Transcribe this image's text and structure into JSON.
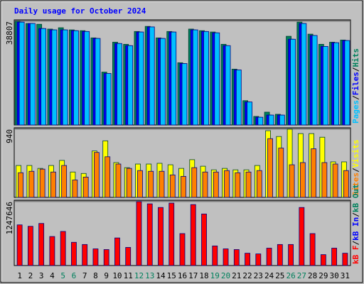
{
  "title": "Daily usage for October 2024",
  "label_separator": "/",
  "chart_data": [
    {
      "type": "bar",
      "categories": [
        "1",
        "2",
        "3",
        "4",
        "5",
        "6",
        "7",
        "8",
        "9",
        "10",
        "11",
        "12",
        "13",
        "14",
        "15",
        "16",
        "17",
        "18",
        "19",
        "20",
        "21",
        "22",
        "23",
        "24",
        "25",
        "26",
        "27",
        "28",
        "29",
        "30",
        "31"
      ],
      "category_colors": [
        "#000000",
        "#000000",
        "#000000",
        "#000000",
        "#00805c",
        "#00805c",
        "#000000",
        "#000000",
        "#000000",
        "#000000",
        "#000000",
        "#00805c",
        "#00805c",
        "#000000",
        "#000000",
        "#000000",
        "#000000",
        "#000000",
        "#00805c",
        "#00805c",
        "#000000",
        "#000000",
        "#000000",
        "#000000",
        "#000000",
        "#00805c",
        "#00805c",
        "#000000",
        "#000000",
        "#000000",
        "#000000"
      ],
      "ylim": [
        0,
        38807
      ],
      "yticks": [
        38807
      ],
      "grid": true,
      "series": [
        {
          "name": "Hits",
          "color": "#00805c",
          "values": [
            38807,
            38000,
            37700,
            35900,
            36400,
            35600,
            35300,
            32600,
            19800,
            31000,
            30200,
            35000,
            36900,
            32600,
            35000,
            23300,
            35900,
            35300,
            34800,
            30200,
            20900,
            9100,
            3200,
            4800,
            4000,
            33200,
            38500,
            34000,
            30200,
            31000,
            31800
          ]
        },
        {
          "name": "Files",
          "color": "#0000ff",
          "values": [
            38500,
            38000,
            36100,
            35600,
            35600,
            35300,
            35000,
            32400,
            19300,
            30500,
            29700,
            34800,
            36700,
            32400,
            34800,
            23000,
            35600,
            35000,
            34500,
            29700,
            20600,
            8600,
            2900,
            3700,
            3700,
            32100,
            38000,
            33500,
            29400,
            30800,
            31600
          ]
        },
        {
          "name": "Pages",
          "color": "#00c0ff",
          "values": [
            38500,
            38000,
            36100,
            35600,
            35600,
            35300,
            35000,
            32400,
            19300,
            30500,
            29700,
            34800,
            36700,
            32400,
            34800,
            23000,
            35600,
            35000,
            34500,
            29700,
            20600,
            8600,
            2900,
            3700,
            3700,
            32100,
            38000,
            33500,
            29400,
            30800,
            31600
          ]
        }
      ]
    },
    {
      "type": "bar",
      "ylim": [
        0,
        940
      ],
      "yticks": [
        940
      ],
      "grid": true,
      "series": [
        {
          "name": "Visits",
          "color": "#ffff00",
          "values": [
            440,
            440,
            400,
            440,
            510,
            350,
            330,
            640,
            780,
            480,
            410,
            460,
            460,
            470,
            450,
            400,
            520,
            430,
            380,
            400,
            380,
            380,
            440,
            920,
            840,
            940,
            880,
            880,
            830,
            490,
            490
          ]
        },
        {
          "name": "Sites",
          "color": "#ff8000",
          "values": [
            340,
            360,
            390,
            350,
            440,
            240,
            280,
            620,
            560,
            460,
            400,
            370,
            360,
            360,
            310,
            290,
            410,
            350,
            350,
            370,
            340,
            350,
            370,
            810,
            680,
            450,
            480,
            670,
            480,
            460,
            370
          ]
        }
      ]
    },
    {
      "type": "bar",
      "ylim": [
        0,
        1247646
      ],
      "yticks": [
        1247646
      ],
      "grid": true,
      "series": [
        {
          "name": "kB F",
          "color": "#ff0000",
          "values": [
            794000,
            766000,
            822000,
            567000,
            666000,
            454000,
            411000,
            326000,
            312000,
            539000,
            354000,
            1247646,
            1205000,
            1134000,
            1219000,
            624000,
            1191000,
            1007000,
            383000,
            326000,
            312000,
            241000,
            227000,
            340000,
            411000,
            411000,
            1134000,
            624000,
            213000,
            340000,
            241000
          ]
        }
      ],
      "legend_extra": [
        {
          "name": "kB In",
          "color": "#0000ff"
        },
        {
          "name": "kB Out",
          "color": "#00805c"
        }
      ]
    }
  ]
}
